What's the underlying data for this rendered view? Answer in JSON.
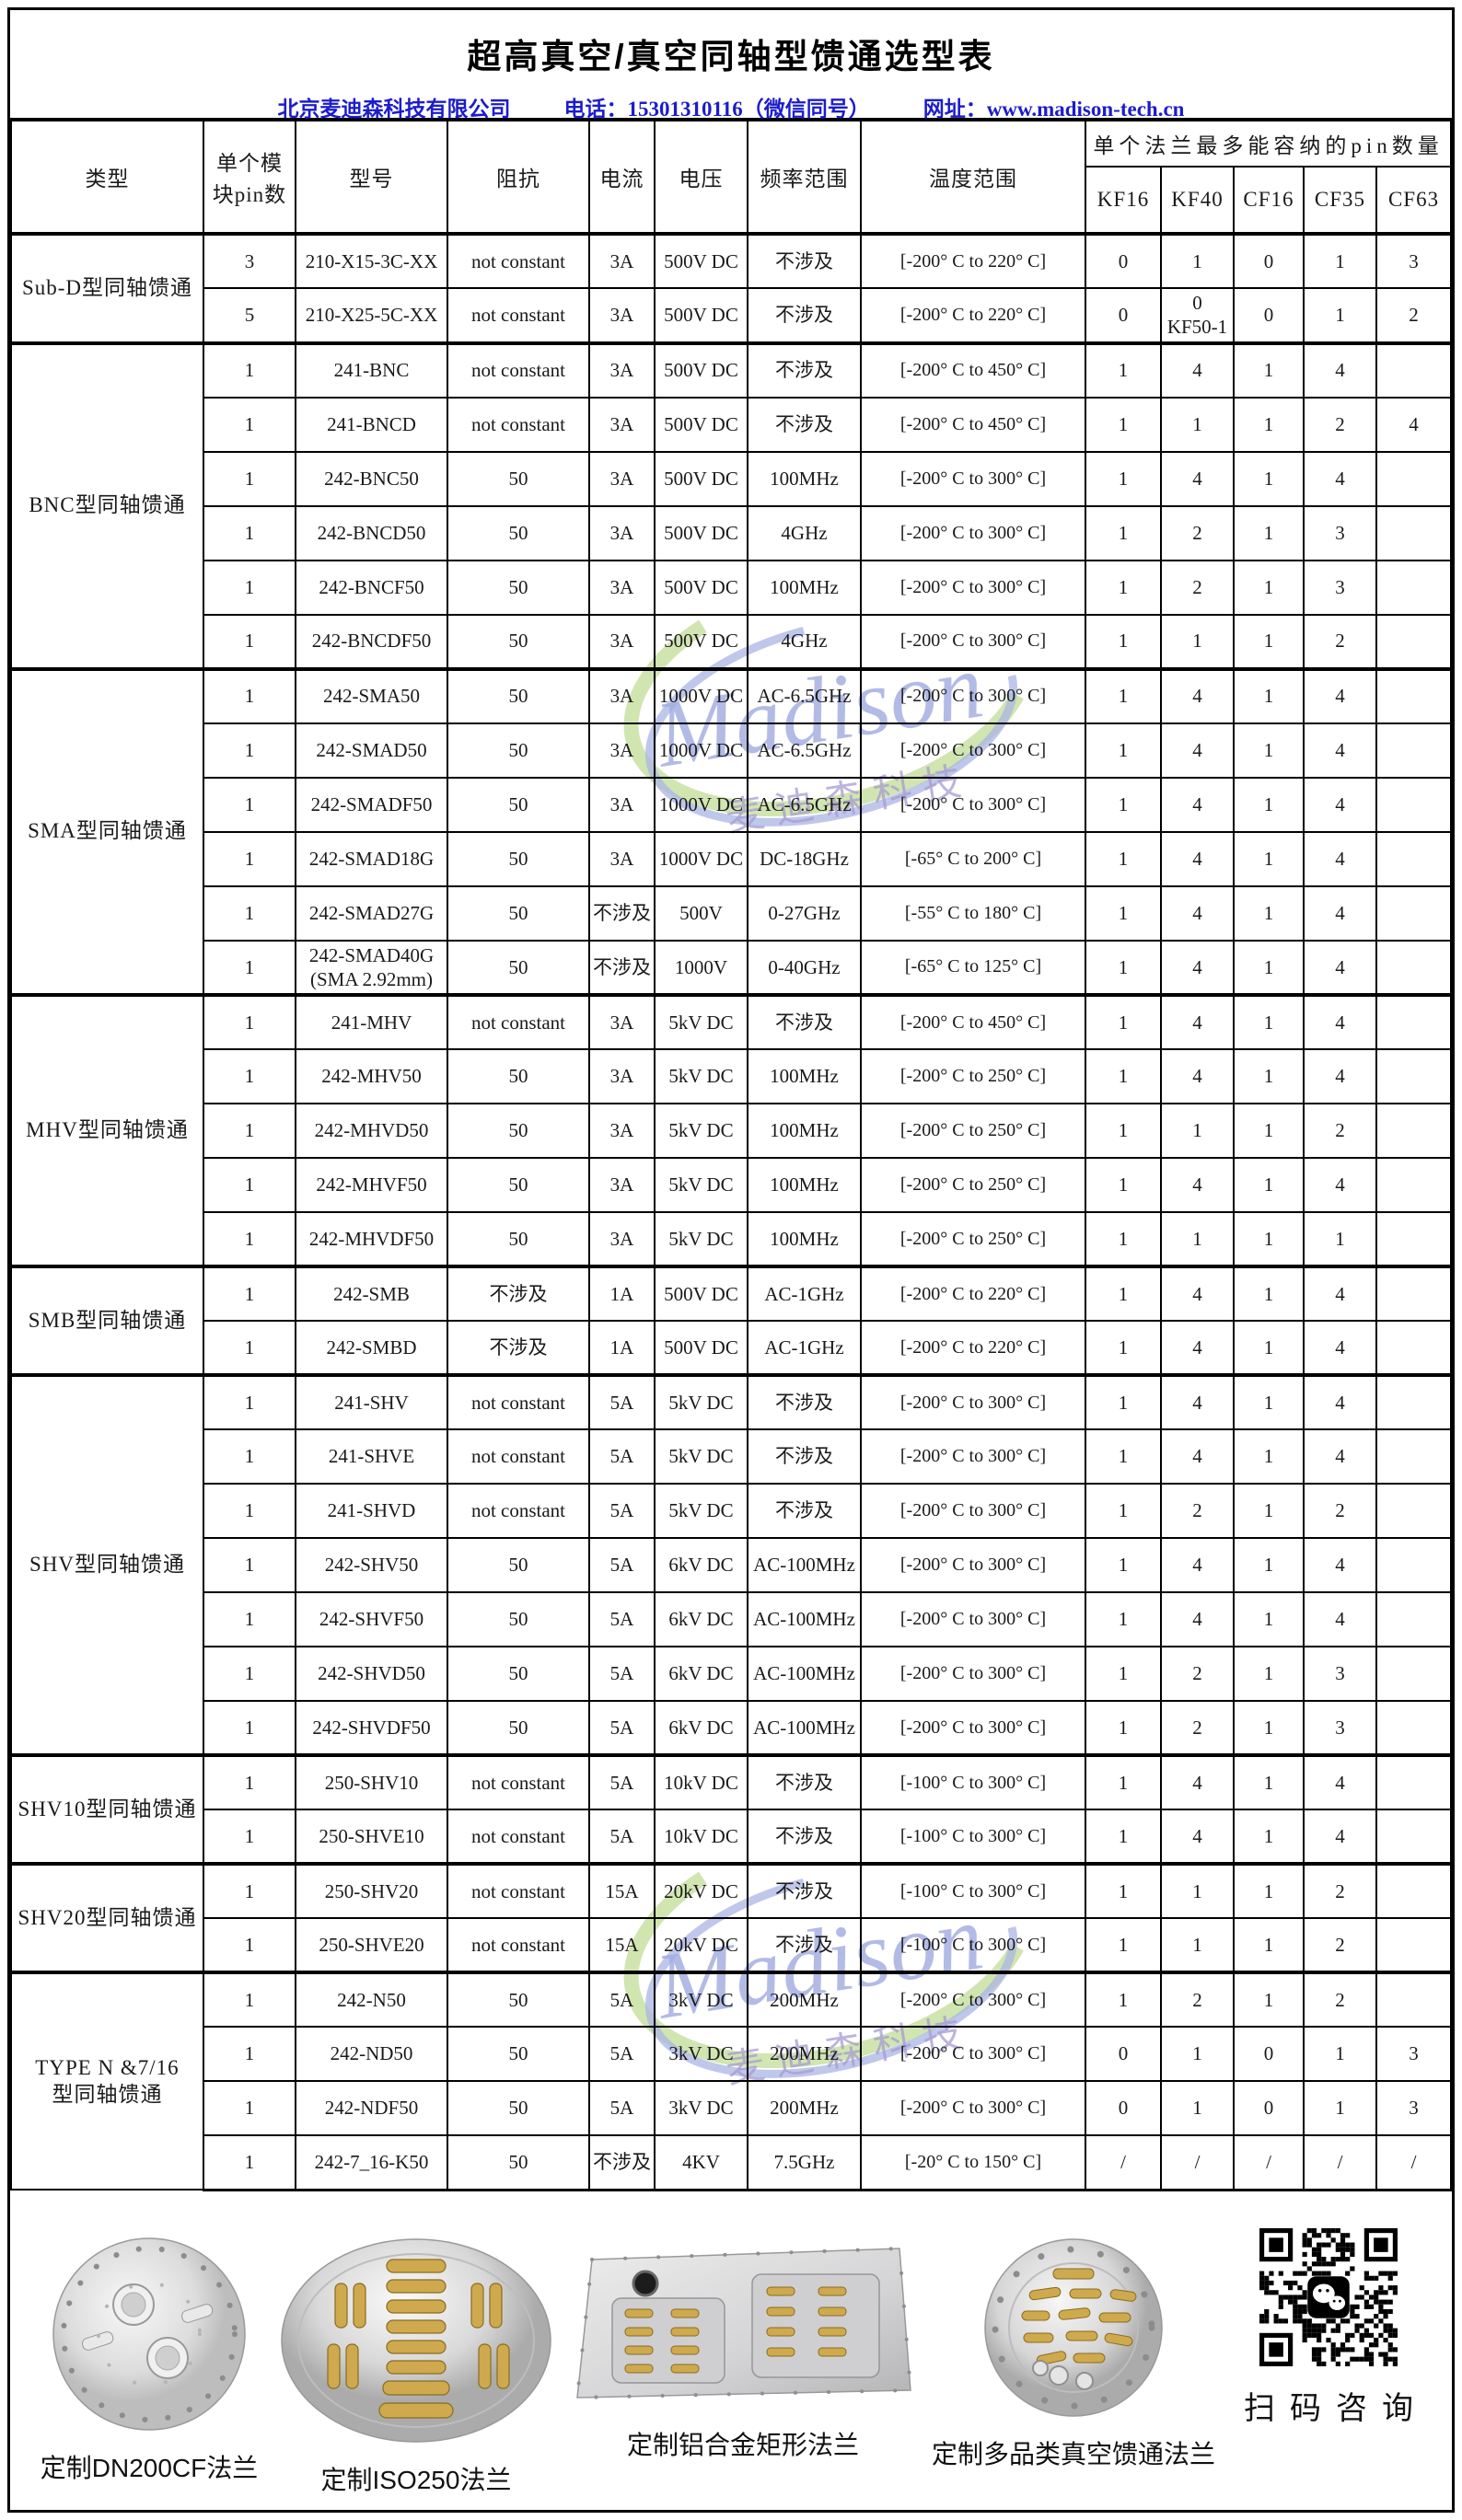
{
  "title": "超高真空/真空同轴型馈通选型表",
  "company_line": {
    "company": "北京麦迪森科技有限公司",
    "phone": "电话：15301310116（微信同号）",
    "website": "网址：www.madison-tech.cn"
  },
  "colors": {
    "company_text": "#1c1ccd",
    "border": "#000000",
    "watermark_green": "#c5de9d",
    "watermark_blue": "#a9b4e4",
    "watermark_purple": "#a89bd2",
    "gold_connector": "#cfa94d"
  },
  "watermark": {
    "name": "Madison",
    "sub": "麦迪森科技"
  },
  "table": {
    "headers": {
      "type": "类型",
      "pins": "单个模\n块pin数",
      "model": "型号",
      "impedance": "阻抗",
      "current": "电流",
      "voltage": "电压",
      "freq": "频率范围",
      "temp": "温度范围"
    },
    "flange_header": "单个法兰最多能容纳的pin数量",
    "flange_cols": [
      "KF16",
      "KF40",
      "CF16",
      "CF35",
      "CF63"
    ],
    "groups": [
      {
        "type": "Sub-D型同轴馈通",
        "rows": [
          [
            "3",
            "210-X15-3C-XX",
            "not constant",
            "3A",
            "500V DC",
            "不涉及",
            "[-200° C to 220° C]",
            "0",
            "1",
            "0",
            "1",
            "3"
          ],
          [
            "5",
            "210-X25-5C-XX",
            "not constant",
            "3A",
            "500V DC",
            "不涉及",
            "[-200° C to 220° C]",
            "0",
            "0\nKF50-1",
            "0",
            "1",
            "2"
          ]
        ]
      },
      {
        "type": "BNC型同轴馈通",
        "rows": [
          [
            "1",
            "241-BNC",
            "not constant",
            "3A",
            "500V DC",
            "不涉及",
            "[-200° C to 450° C]",
            "1",
            "4",
            "1",
            "4",
            ""
          ],
          [
            "1",
            "241-BNCD",
            "not constant",
            "3A",
            "500V DC",
            "不涉及",
            "[-200° C to 450° C]",
            "1",
            "1",
            "1",
            "2",
            "4"
          ],
          [
            "1",
            "242-BNC50",
            "50",
            "3A",
            "500V DC",
            "100MHz",
            "[-200° C to 300° C]",
            "1",
            "4",
            "1",
            "4",
            ""
          ],
          [
            "1",
            "242-BNCD50",
            "50",
            "3A",
            "500V DC",
            "4GHz",
            "[-200° C to 300° C]",
            "1",
            "2",
            "1",
            "3",
            ""
          ],
          [
            "1",
            "242-BNCF50",
            "50",
            "3A",
            "500V DC",
            "100MHz",
            "[-200° C to 300° C]",
            "1",
            "2",
            "1",
            "3",
            ""
          ],
          [
            "1",
            "242-BNCDF50",
            "50",
            "3A",
            "500V DC",
            "4GHz",
            "[-200° C to 300° C]",
            "1",
            "1",
            "1",
            "2",
            ""
          ]
        ]
      },
      {
        "type": "SMA型同轴馈通",
        "rows": [
          [
            "1",
            "242-SMA50",
            "50",
            "3A",
            "1000V DC",
            "AC-6.5GHz",
            "[-200° C to 300° C]",
            "1",
            "4",
            "1",
            "4",
            ""
          ],
          [
            "1",
            "242-SMAD50",
            "50",
            "3A",
            "1000V DC",
            "AC-6.5GHz",
            "[-200° C to 300° C]",
            "1",
            "4",
            "1",
            "4",
            ""
          ],
          [
            "1",
            "242-SMADF50",
            "50",
            "3A",
            "1000V DC",
            "AC-6.5GHz",
            "[-200° C to 300° C]",
            "1",
            "4",
            "1",
            "4",
            ""
          ],
          [
            "1",
            "242-SMAD18G",
            "50",
            "3A",
            "1000V DC",
            "DC-18GHz",
            "[-65° C to 200° C]",
            "1",
            "4",
            "1",
            "4",
            ""
          ],
          [
            "1",
            "242-SMAD27G",
            "50",
            "不涉及",
            "500V",
            "0-27GHz",
            "[-55° C to 180° C]",
            "1",
            "4",
            "1",
            "4",
            ""
          ],
          [
            "1",
            "242-SMAD40G\n(SMA 2.92mm)",
            "50",
            "不涉及",
            "1000V",
            "0-40GHz",
            "[-65° C to 125° C]",
            "1",
            "4",
            "1",
            "4",
            ""
          ]
        ]
      },
      {
        "type": "MHV型同轴馈通",
        "rows": [
          [
            "1",
            "241-MHV",
            "not constant",
            "3A",
            "5kV DC",
            "不涉及",
            "[-200° C to 450° C]",
            "1",
            "4",
            "1",
            "4",
            ""
          ],
          [
            "1",
            "242-MHV50",
            "50",
            "3A",
            "5kV DC",
            "100MHz",
            "[-200° C to 250° C]",
            "1",
            "4",
            "1",
            "4",
            ""
          ],
          [
            "1",
            "242-MHVD50",
            "50",
            "3A",
            "5kV DC",
            "100MHz",
            "[-200° C to 250° C]",
            "1",
            "1",
            "1",
            "2",
            ""
          ],
          [
            "1",
            "242-MHVF50",
            "50",
            "3A",
            "5kV DC",
            "100MHz",
            "[-200° C to 250° C]",
            "1",
            "4",
            "1",
            "4",
            ""
          ],
          [
            "1",
            "242-MHVDF50",
            "50",
            "3A",
            "5kV DC",
            "100MHz",
            "[-200° C to 250° C]",
            "1",
            "1",
            "1",
            "1",
            ""
          ]
        ]
      },
      {
        "type": "SMB型同轴馈通",
        "rows": [
          [
            "1",
            "242-SMB",
            "不涉及",
            "1A",
            "500V DC",
            "AC-1GHz",
            "[-200° C to 220° C]",
            "1",
            "4",
            "1",
            "4",
            ""
          ],
          [
            "1",
            "242-SMBD",
            "不涉及",
            "1A",
            "500V DC",
            "AC-1GHz",
            "[-200° C to 220° C]",
            "1",
            "4",
            "1",
            "4",
            ""
          ]
        ]
      },
      {
        "type": "SHV型同轴馈通",
        "rows": [
          [
            "1",
            "241-SHV",
            "not constant",
            "5A",
            "5kV DC",
            "不涉及",
            "[-200° C to 300° C]",
            "1",
            "4",
            "1",
            "4",
            ""
          ],
          [
            "1",
            "241-SHVE",
            "not constant",
            "5A",
            "5kV DC",
            "不涉及",
            "[-200° C to 300° C]",
            "1",
            "4",
            "1",
            "4",
            ""
          ],
          [
            "1",
            "241-SHVD",
            "not constant",
            "5A",
            "5kV DC",
            "不涉及",
            "[-200° C to 300° C]",
            "1",
            "2",
            "1",
            "2",
            ""
          ],
          [
            "1",
            "242-SHV50",
            "50",
            "5A",
            "6kV DC",
            "AC-100MHz",
            "[-200° C to 300° C]",
            "1",
            "4",
            "1",
            "4",
            ""
          ],
          [
            "1",
            "242-SHVF50",
            "50",
            "5A",
            "6kV DC",
            "AC-100MHz",
            "[-200° C to 300° C]",
            "1",
            "4",
            "1",
            "4",
            ""
          ],
          [
            "1",
            "242-SHVD50",
            "50",
            "5A",
            "6kV DC",
            "AC-100MHz",
            "[-200° C to 300° C]",
            "1",
            "2",
            "1",
            "3",
            ""
          ],
          [
            "1",
            "242-SHVDF50",
            "50",
            "5A",
            "6kV DC",
            "AC-100MHz",
            "[-200° C to 300° C]",
            "1",
            "2",
            "1",
            "3",
            ""
          ]
        ]
      },
      {
        "type": "SHV10型同轴馈通",
        "rows": [
          [
            "1",
            "250-SHV10",
            "not constant",
            "5A",
            "10kV DC",
            "不涉及",
            "[-100° C to 300° C]",
            "1",
            "4",
            "1",
            "4",
            ""
          ],
          [
            "1",
            "250-SHVE10",
            "not constant",
            "5A",
            "10kV DC",
            "不涉及",
            "[-100° C to 300° C]",
            "1",
            "4",
            "1",
            "4",
            ""
          ]
        ]
      },
      {
        "type": "SHV20型同轴馈通",
        "rows": [
          [
            "1",
            "250-SHV20",
            "not constant",
            "15A",
            "20kV DC",
            "不涉及",
            "[-100° C to 300° C]",
            "1",
            "1",
            "1",
            "2",
            ""
          ],
          [
            "1",
            "250-SHVE20",
            "not constant",
            "15A",
            "20kV DC",
            "不涉及",
            "[-100° C to 300° C]",
            "1",
            "1",
            "1",
            "2",
            ""
          ]
        ]
      },
      {
        "type": "TYPE N &7/16\n型同轴馈通",
        "rows": [
          [
            "1",
            "242-N50",
            "50",
            "5A",
            "3kV DC",
            "200MHz",
            "[-200° C to 300° C]",
            "1",
            "2",
            "1",
            "2",
            ""
          ],
          [
            "1",
            "242-ND50",
            "50",
            "5A",
            "3kV DC",
            "200MHz",
            "[-200° C to 300° C]",
            "0",
            "1",
            "0",
            "1",
            "3"
          ],
          [
            "1",
            "242-NDF50",
            "50",
            "5A",
            "3kV DC",
            "200MHz",
            "[-200° C to 300° C]",
            "0",
            "1",
            "0",
            "1",
            "3"
          ],
          [
            "1",
            "242-7_16-K50",
            "50",
            "不涉及",
            "4KV",
            "7.5GHz",
            "[-20° C to 150° C]",
            "/",
            "/",
            "/",
            "/",
            "/"
          ]
        ]
      }
    ]
  },
  "footer": {
    "captions": [
      "定制DN200CF法兰",
      "定制ISO250法兰",
      "定制铝合金矩形法兰",
      "定制多品类真空馈通法兰"
    ],
    "qr_caption": "扫码咨询"
  }
}
